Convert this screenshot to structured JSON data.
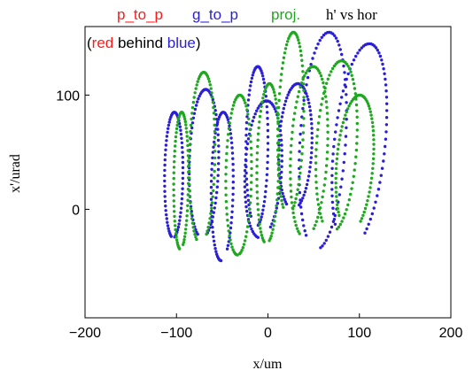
{
  "chart_data": {
    "type": "scatter",
    "legend": [
      {
        "label": "p_to_p",
        "color": "#ff1a1a"
      },
      {
        "label": "g_to_p",
        "color": "#2a1fd6"
      },
      {
        "label": "proj.",
        "color": "#1ea81e"
      }
    ],
    "plot_title": "h' vs hor",
    "annotation": {
      "open": "(",
      "red_word": "red",
      "middle": " behind ",
      "blue_word": "blue",
      "close": ")"
    },
    "xlabel": "x/um",
    "ylabel": "x'/urad",
    "xlim": [
      -200,
      200
    ],
    "ylim": [
      -95,
      160
    ],
    "xticks": [
      -200,
      -100,
      0,
      100,
      200
    ],
    "yticks": [
      0,
      100
    ],
    "grid": false,
    "colors": {
      "red": "#ff1a1a",
      "blue": "#2a1fd6",
      "green": "#1ea81e"
    },
    "series": [
      {
        "name": "g_to_p",
        "color": "#2a1fd6",
        "loops": [
          {
            "cx": -103,
            "cy": 30,
            "rx": 10,
            "ry": 55,
            "tilt": 0.02,
            "start": -1.4,
            "end": 4.5
          },
          {
            "cx": -70,
            "cy": 40,
            "rx": 16,
            "ry": 65,
            "tilt": 0.05,
            "start": -1.2,
            "end": 4.4
          },
          {
            "cx": -50,
            "cy": 20,
            "rx": 12,
            "ry": 65,
            "tilt": 0.03,
            "start": -1.0,
            "end": 4.7
          },
          {
            "cx": -12,
            "cy": 55,
            "rx": 12,
            "ry": 70,
            "tilt": 0.02,
            "start": -1.4,
            "end": 4.2
          },
          {
            "cx": -5,
            "cy": 35,
            "rx": 20,
            "ry": 60,
            "tilt": 0.1,
            "start": -1.0,
            "end": 4.6
          },
          {
            "cx": 30,
            "cy": 55,
            "rx": 18,
            "ry": 55,
            "tilt": 0.08,
            "start": -1.2,
            "end": 4.3
          },
          {
            "cx": 60,
            "cy": 60,
            "rx": 25,
            "ry": 95,
            "tilt": 0.12,
            "start": -1.4,
            "end": 4.2
          },
          {
            "cx": 100,
            "cy": 55,
            "rx": 28,
            "ry": 90,
            "tilt": 0.2,
            "start": -1.0,
            "end": 4.0
          }
        ]
      },
      {
        "name": "proj.",
        "color": "#1ea81e",
        "loops": [
          {
            "cx": -95,
            "cy": 25,
            "rx": 8,
            "ry": 60,
            "tilt": 0.02,
            "start": -1.2,
            "end": 4.6
          },
          {
            "cx": -72,
            "cy": 45,
            "rx": 14,
            "ry": 75,
            "tilt": 0.04,
            "start": -1.1,
            "end": 4.4
          },
          {
            "cx": -32,
            "cy": 30,
            "rx": 14,
            "ry": 70,
            "tilt": 0.03,
            "start": -1.4,
            "end": 4.7
          },
          {
            "cx": 0,
            "cy": 40,
            "rx": 12,
            "ry": 70,
            "tilt": 0.04,
            "start": -1.3,
            "end": 4.5
          },
          {
            "cx": 25,
            "cy": 75,
            "rx": 14,
            "ry": 80,
            "tilt": 0.06,
            "start": -1.2,
            "end": 4.3
          },
          {
            "cx": 45,
            "cy": 50,
            "rx": 20,
            "ry": 75,
            "tilt": 0.1,
            "start": -1.1,
            "end": 4.4
          },
          {
            "cx": 75,
            "cy": 55,
            "rx": 22,
            "ry": 75,
            "tilt": 0.12,
            "start": -1.3,
            "end": 4.2
          },
          {
            "cx": 95,
            "cy": 40,
            "rx": 20,
            "ry": 60,
            "tilt": 0.15,
            "start": -1.0,
            "end": 4.0
          }
        ]
      }
    ]
  }
}
